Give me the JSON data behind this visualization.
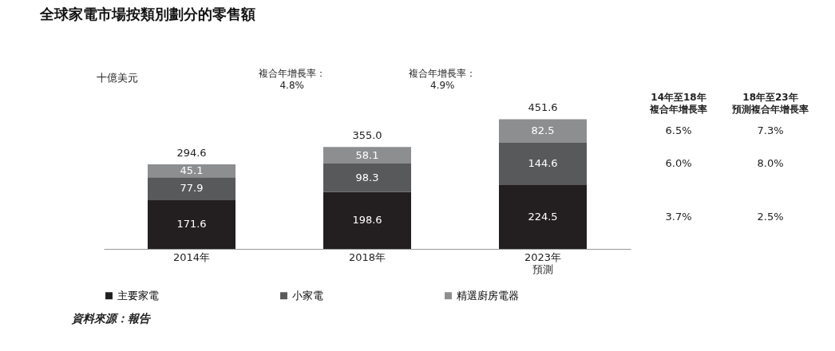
{
  "chart_data": {
    "type": "bar",
    "title": "全球家電市場按類別劃分的零售額",
    "ylabel": "十億美元",
    "categories": [
      "2014年",
      "2018年",
      "2023年預測"
    ],
    "stacked": true,
    "data_labels": true,
    "legend": "bottom",
    "grid": false,
    "totals": [
      "294.6",
      "355.0",
      "451.6"
    ],
    "series": [
      {
        "name": "主要家電",
        "color": "#231f20",
        "values": [
          171.6,
          198.6,
          224.5
        ]
      },
      {
        "name": "小家電",
        "color": "#58595b",
        "values": [
          77.9,
          98.3,
          144.6
        ]
      },
      {
        "name": "精選廚房電器",
        "color": "#8d8e90",
        "values": [
          45.1,
          58.1,
          82.5
        ]
      }
    ],
    "annotations": [
      "複合年增長率：\n4.8%",
      "複合年增長率：\n4.9%",
      "14年至18年複合年增長率",
      "18年至23年預測複合年增長率",
      "6.5%",
      "7.3%",
      "6.0%",
      "8.0%",
      "3.7%",
      "2.5%",
      "資料來源：報告"
    ]
  }
}
